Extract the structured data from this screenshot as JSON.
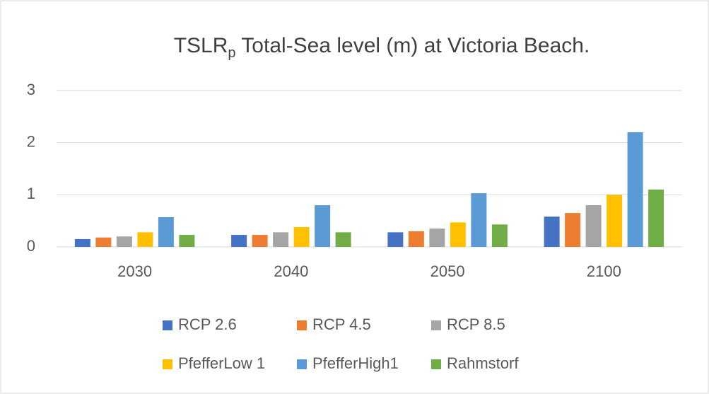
{
  "chart_data": {
    "type": "bar",
    "title": {
      "main": "TSLR",
      "subscript": "p",
      "rest": " Total-Sea level (m) at Victoria Beach."
    },
    "categories": [
      "2030",
      "2040",
      "2050",
      "2100"
    ],
    "series": [
      {
        "name": "RCP 2.6",
        "color": "#4472c4",
        "values": [
          0.15,
          0.23,
          0.28,
          0.58
        ]
      },
      {
        "name": "RCP 4.5",
        "color": "#ed7d31",
        "values": [
          0.18,
          0.23,
          0.3,
          0.65
        ]
      },
      {
        "name": "RCP 8.5",
        "color": "#a5a5a5",
        "values": [
          0.2,
          0.28,
          0.35,
          0.8
        ]
      },
      {
        "name": "PfefferLow 1",
        "color": "#ffc000",
        "values": [
          0.28,
          0.38,
          0.47,
          1.0
        ]
      },
      {
        "name": "PfefferHigh1",
        "color": "#5b9bd5",
        "values": [
          0.57,
          0.8,
          1.03,
          2.2
        ]
      },
      {
        "name": "Rahmstorf",
        "color": "#70ad47",
        "values": [
          0.23,
          0.28,
          0.43,
          1.1
        ]
      }
    ],
    "ylim": [
      0,
      3
    ],
    "yticks": [
      0,
      1,
      2,
      3
    ],
    "grid": true,
    "legend": "bottom"
  }
}
